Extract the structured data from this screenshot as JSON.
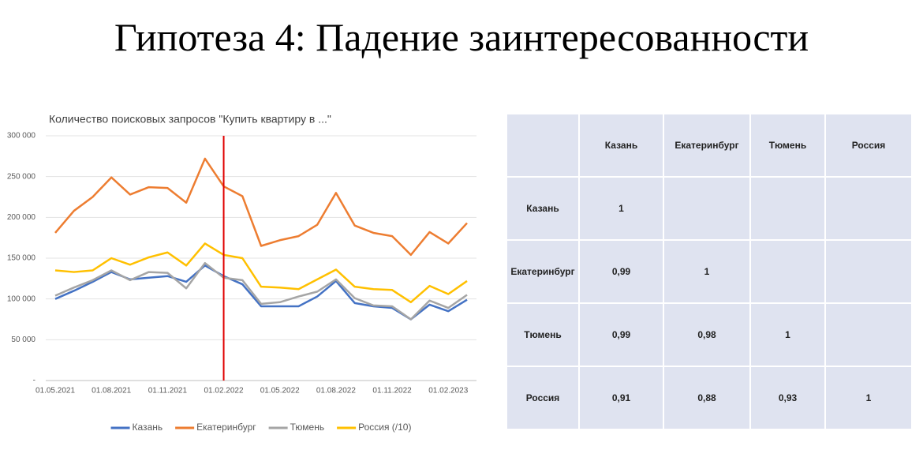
{
  "slide_title": "Гипотеза 4: Падение заинтересованности",
  "chart_data": {
    "type": "line",
    "title": "Количество поисковых запросов \"Купить квартиру в ...\"",
    "categories": [
      "01.05.2021",
      null,
      null,
      "01.08.2021",
      null,
      null,
      "01.11.2021",
      null,
      null,
      "01.02.2022",
      null,
      null,
      "01.05.2022",
      null,
      null,
      "01.08.2022",
      null,
      null,
      "01.11.2022",
      null,
      null,
      "01.02.2023",
      null
    ],
    "series": [
      {
        "name": "Казань",
        "color": "#4472c4",
        "values": [
          100000,
          110000,
          121000,
          133000,
          124000,
          126000,
          128000,
          121000,
          141000,
          128000,
          118000,
          91000,
          91000,
          91000,
          103000,
          122000,
          95000,
          91000,
          89000,
          75000,
          93000,
          85000,
          99000
        ]
      },
      {
        "name": "Екатеринбург",
        "color": "#ed7d31",
        "values": [
          181000,
          208000,
          225000,
          249000,
          228000,
          237000,
          236000,
          218000,
          272000,
          238000,
          226000,
          165000,
          172000,
          177000,
          191000,
          230000,
          190000,
          181000,
          177000,
          154000,
          182000,
          168000,
          193000
        ]
      },
      {
        "name": "Тюмень",
        "color": "#a5a5a5",
        "values": [
          104000,
          114000,
          123000,
          135000,
          123000,
          133000,
          132000,
          113000,
          144000,
          126000,
          123000,
          94000,
          96000,
          103000,
          109000,
          124000,
          101000,
          92000,
          91000,
          75000,
          98000,
          89000,
          105000
        ]
      },
      {
        "name": "Россия (/10)",
        "color": "#ffc000",
        "values": [
          135000,
          133000,
          135000,
          150000,
          142000,
          151000,
          157000,
          141000,
          168000,
          154000,
          150000,
          115000,
          114000,
          112000,
          124000,
          136000,
          115000,
          112000,
          111000,
          96000,
          116000,
          106000,
          122000
        ]
      }
    ],
    "ylim": [
      0,
      300000
    ],
    "yticks": [
      {
        "value": 0,
        "label": "-"
      },
      {
        "value": 50000,
        "label": "50 000"
      },
      {
        "value": 100000,
        "label": "100 000"
      },
      {
        "value": 150000,
        "label": "150 000"
      },
      {
        "value": 200000,
        "label": "200 000"
      },
      {
        "value": 250000,
        "label": "250 000"
      },
      {
        "value": 300000,
        "label": "300 000"
      }
    ],
    "grid": true,
    "legend": "bottom",
    "vline": {
      "category": 9,
      "color": "#e00000"
    }
  },
  "table": {
    "columns": [
      "Казань",
      "Екатеринбург",
      "Тюмень",
      "Россия"
    ],
    "rows": [
      {
        "label": "Казань",
        "values": [
          "1"
        ]
      },
      {
        "label": "Екатеринбург",
        "values": [
          "0,99",
          "1"
        ]
      },
      {
        "label": "Тюмень",
        "values": [
          "0,99",
          "0,98",
          "1"
        ]
      },
      {
        "label": "Россия",
        "values": [
          "0,91",
          "0,88",
          "0,93",
          "1"
        ]
      }
    ]
  }
}
